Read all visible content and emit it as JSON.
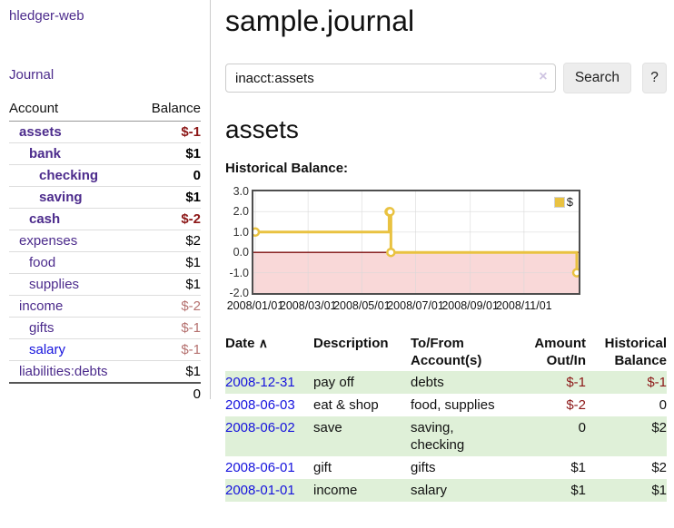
{
  "app": {
    "brand": "hledger-web"
  },
  "sidebar": {
    "nav": {
      "journal": "Journal"
    },
    "table": {
      "headers": {
        "account": "Account",
        "balance": "Balance"
      },
      "rows": [
        {
          "account": "assets",
          "balance": "$-1"
        },
        {
          "account": "bank",
          "balance": "$1"
        },
        {
          "account": "checking",
          "balance": "0"
        },
        {
          "account": "saving",
          "balance": "$1"
        },
        {
          "account": "cash",
          "balance": "$-2"
        },
        {
          "account": "expenses",
          "balance": "$2"
        },
        {
          "account": "food",
          "balance": "$1"
        },
        {
          "account": "supplies",
          "balance": "$1"
        },
        {
          "account": "income",
          "balance": "$-2"
        },
        {
          "account": "gifts",
          "balance": "$-1"
        },
        {
          "account": "salary",
          "balance": "$-1"
        },
        {
          "account": "liabilities:debts",
          "balance": "$1"
        }
      ],
      "total": "0"
    }
  },
  "header": {
    "title": "sample.journal"
  },
  "search": {
    "value": "inacct:assets",
    "clear_icon": "×",
    "button": "Search",
    "help_button": "?"
  },
  "account_page": {
    "heading": "assets",
    "chart_label": "Historical Balance:"
  },
  "chart_data": {
    "type": "line",
    "step": true,
    "title": "Historical Balance:",
    "series": [
      {
        "name": "$",
        "color": "#e9c241",
        "points": [
          [
            "2008-01-01",
            1
          ],
          [
            "2008-06-01",
            2
          ],
          [
            "2008-06-02",
            2
          ],
          [
            "2008-06-03",
            0
          ],
          [
            "2008-12-31",
            -1
          ]
        ]
      }
    ],
    "ylim": [
      -2,
      3
    ],
    "yticks": [
      "3.0",
      "2.0",
      "1.0",
      "0.0",
      "-1.0",
      "-2.0"
    ],
    "xticks": [
      "2008/01/01",
      "2008/03/01",
      "2008/05/01",
      "2008/07/01",
      "2008/09/01",
      "2008/11/01"
    ],
    "x_range": [
      "2008-01-01",
      "2008-12-31"
    ],
    "grid": true,
    "legend_position": "top-right",
    "negative_fill": "#f9d8d8",
    "zero_line_color": "#7d0d0d",
    "grid_color": "#d9d9d9",
    "border_color": "#4e4e4e"
  },
  "register": {
    "sort_icon": "∧",
    "headers": {
      "date": "Date",
      "description": "Description",
      "account_line1": "To/From",
      "account_line2": "Account(s)",
      "amount_line1": "Amount",
      "amount_line2": "Out/In",
      "balance_line1": "Historical",
      "balance_line2": "Balance"
    },
    "rows": [
      {
        "date": "2008-12-31",
        "description": "pay off",
        "accounts": "debts",
        "amount": "$-1",
        "balance": "$-1"
      },
      {
        "date": "2008-06-03",
        "description": "eat & shop",
        "accounts": "food, supplies",
        "amount": "$-2",
        "balance": "0"
      },
      {
        "date": "2008-06-02",
        "description": "save",
        "accounts": "saving, checking",
        "amount": "0",
        "balance": "$2"
      },
      {
        "date": "2008-06-01",
        "description": "gift",
        "accounts": "gifts",
        "amount": "$1",
        "balance": "$2"
      },
      {
        "date": "2008-01-01",
        "description": "income",
        "accounts": "salary",
        "amount": "$1",
        "balance": "$1"
      }
    ]
  }
}
